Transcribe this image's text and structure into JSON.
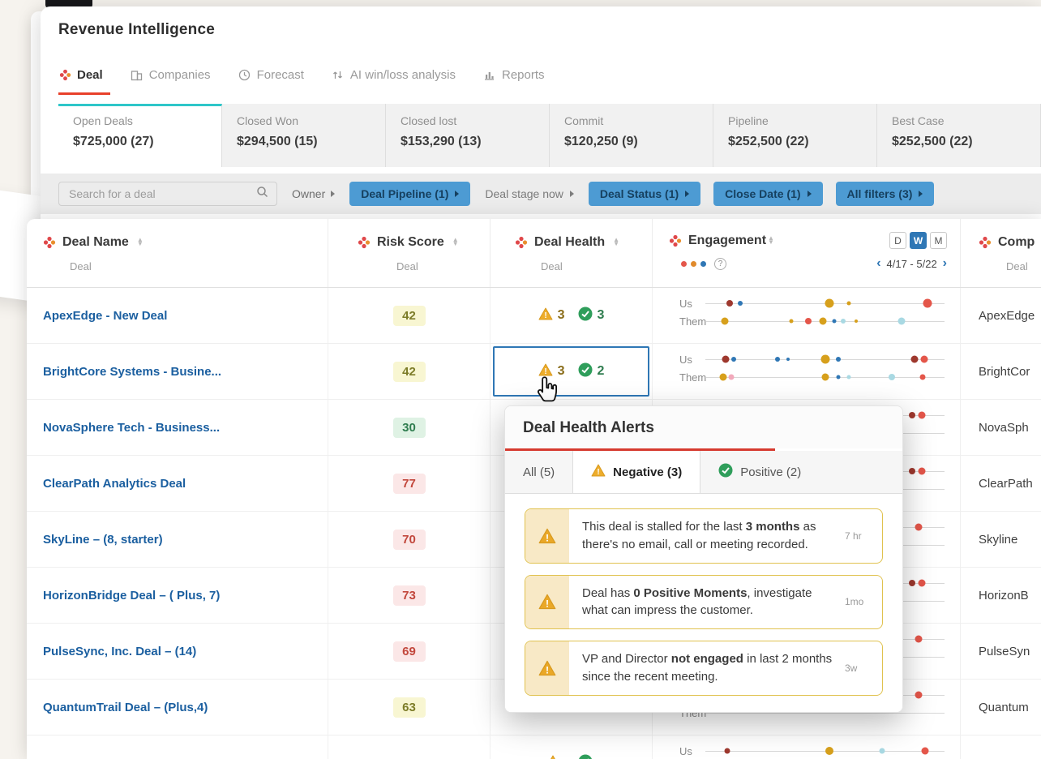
{
  "page": {
    "title": "Revenue Intelligence"
  },
  "icons": {
    "sort_up": "▲",
    "sort_down": "▼",
    "chevron_left": "‹",
    "chevron_right": "›",
    "question": "?"
  },
  "nav": {
    "tabs": [
      {
        "label": "Deal",
        "icon": "deal-icon",
        "active": true
      },
      {
        "label": "Companies",
        "icon": "companies-icon",
        "active": false
      },
      {
        "label": "Forecast",
        "icon": "forecast-icon",
        "active": false
      },
      {
        "label": "AI win/loss analysis",
        "icon": "winloss-icon",
        "active": false
      },
      {
        "label": "Reports",
        "icon": "reports-icon",
        "active": false
      }
    ]
  },
  "summary_cards": [
    {
      "label": "Open Deals",
      "value": "$725,000 (27)",
      "active": true
    },
    {
      "label": "Closed Won",
      "value": "$294,500 (15)",
      "active": false
    },
    {
      "label": "Closed lost",
      "value": "$153,290 (13)",
      "active": false
    },
    {
      "label": "Commit",
      "value": "$120,250 (9)",
      "active": false
    },
    {
      "label": "Pipeline",
      "value": "$252,500 (22)",
      "active": false
    },
    {
      "label": "Best Case",
      "value": "$252,500 (22)",
      "active": false
    }
  ],
  "filter_bar": {
    "search_placeholder": "Search for a deal",
    "owner_label": "Owner",
    "pills": [
      {
        "label": "Deal Pipeline (1)",
        "variant": "blue"
      },
      {
        "label": "Deal stage now",
        "variant": "plain"
      },
      {
        "label": "Deal Status (1)",
        "variant": "blue"
      },
      {
        "label": "Close Date (1)",
        "variant": "blue"
      },
      {
        "label": "All filters (3)",
        "variant": "blue"
      }
    ]
  },
  "table": {
    "columns": {
      "name": {
        "title": "Deal Name",
        "sub": "Deal"
      },
      "risk": {
        "title": "Risk Score",
        "sub": "Deal"
      },
      "health": {
        "title": "Deal Health",
        "sub": "Deal"
      },
      "engagement": {
        "title": "Engagement",
        "segments": [
          "D",
          "W",
          "M"
        ],
        "active_segment": "W",
        "date_range": "4/17 - 5/22",
        "row_labels": [
          "Us",
          "Them"
        ]
      },
      "company": {
        "title": "Comp",
        "sub": "Deal"
      }
    },
    "rows": [
      {
        "name": "ApexEdge - New Deal",
        "risk": "42",
        "tone": "yellow",
        "health": true,
        "neg": "3",
        "pos": "3",
        "selected": false,
        "company": "ApexEdge",
        "us": [
          {
            "p": 0.1,
            "c": "maroon",
            "s": 8
          },
          {
            "p": 0.145,
            "c": "blue",
            "s": 6
          },
          {
            "p": 0.52,
            "c": "gold",
            "s": 11
          },
          {
            "p": 0.6,
            "c": "gold",
            "s": 5
          },
          {
            "p": 0.93,
            "c": "red",
            "s": 11
          }
        ],
        "them": [
          {
            "p": 0.08,
            "c": "gold",
            "s": 9
          },
          {
            "p": 0.36,
            "c": "gold",
            "s": 5
          },
          {
            "p": 0.43,
            "c": "red",
            "s": 8
          },
          {
            "p": 0.49,
            "c": "gold",
            "s": 9
          },
          {
            "p": 0.54,
            "c": "blue",
            "s": 5
          },
          {
            "p": 0.575,
            "c": "teal",
            "s": 6
          },
          {
            "p": 0.63,
            "c": "gold",
            "s": 4
          },
          {
            "p": 0.82,
            "c": "teal",
            "s": 9
          }
        ]
      },
      {
        "name": "BrightCore Systems - Busine...",
        "risk": "42",
        "tone": "yellow",
        "health": true,
        "neg": "3",
        "pos": "2",
        "selected": true,
        "company": "BrightCor",
        "us": [
          {
            "p": 0.085,
            "c": "maroon",
            "s": 9
          },
          {
            "p": 0.12,
            "c": "blue",
            "s": 6
          },
          {
            "p": 0.3,
            "c": "blue",
            "s": 6
          },
          {
            "p": 0.345,
            "c": "blue",
            "s": 4
          },
          {
            "p": 0.5,
            "c": "gold",
            "s": 11
          },
          {
            "p": 0.555,
            "c": "blue",
            "s": 6
          },
          {
            "p": 0.875,
            "c": "maroon",
            "s": 9
          },
          {
            "p": 0.915,
            "c": "red",
            "s": 9
          }
        ],
        "them": [
          {
            "p": 0.075,
            "c": "gold",
            "s": 9
          },
          {
            "p": 0.11,
            "c": "pink",
            "s": 7
          },
          {
            "p": 0.5,
            "c": "gold",
            "s": 9
          },
          {
            "p": 0.555,
            "c": "blue",
            "s": 5
          },
          {
            "p": 0.6,
            "c": "teal",
            "s": 5
          },
          {
            "p": 0.78,
            "c": "teal",
            "s": 8
          },
          {
            "p": 0.91,
            "c": "red",
            "s": 7
          }
        ]
      },
      {
        "name": "NovaSphere Tech - Business...",
        "risk": "30",
        "tone": "green",
        "health": false,
        "neg": "",
        "pos": "",
        "selected": false,
        "company": "NovaSph",
        "us": [
          {
            "p": 0.865,
            "c": "maroon",
            "s": 8
          },
          {
            "p": 0.905,
            "c": "red",
            "s": 9
          }
        ],
        "them": []
      },
      {
        "name": "ClearPath Analytics Deal",
        "risk": "77",
        "tone": "red",
        "health": false,
        "neg": "",
        "pos": "",
        "selected": false,
        "company": "ClearPath",
        "us": [
          {
            "p": 0.865,
            "c": "maroon",
            "s": 8
          },
          {
            "p": 0.905,
            "c": "red",
            "s": 9
          }
        ],
        "them": []
      },
      {
        "name": "SkyLine – (8, starter)",
        "risk": "70",
        "tone": "red",
        "health": false,
        "neg": "",
        "pos": "",
        "selected": false,
        "company": "Skyline",
        "us": [
          {
            "p": 0.89,
            "c": "red",
            "s": 9
          }
        ],
        "them": []
      },
      {
        "name": "HorizonBridge Deal – ( Plus, 7)",
        "risk": "73",
        "tone": "red",
        "health": false,
        "neg": "",
        "pos": "",
        "selected": false,
        "company": "HorizonB",
        "us": [
          {
            "p": 0.865,
            "c": "maroon",
            "s": 8
          },
          {
            "p": 0.905,
            "c": "red",
            "s": 9
          }
        ],
        "them": []
      },
      {
        "name": "PulseSync, Inc. Deal – (14)",
        "risk": "69",
        "tone": "red",
        "health": false,
        "neg": "",
        "pos": "",
        "selected": false,
        "company": "PulseSyn",
        "us": [
          {
            "p": 0.89,
            "c": "red",
            "s": 9
          }
        ],
        "them": []
      },
      {
        "name": "QuantumTrail Deal – (Plus,4)",
        "risk": "63",
        "tone": "yellow",
        "health": false,
        "neg": "",
        "pos": "",
        "selected": false,
        "company": "Quantum",
        "us": [
          {
            "p": 0.89,
            "c": "red",
            "s": 9
          }
        ],
        "them": []
      },
      {
        "name": "",
        "risk": "",
        "tone": "",
        "health": true,
        "neg": "",
        "pos": "",
        "selected": false,
        "company": "",
        "us": [
          {
            "p": 0.09,
            "c": "maroon",
            "s": 7
          },
          {
            "p": 0.52,
            "c": "gold",
            "s": 10
          },
          {
            "p": 0.74,
            "c": "teal",
            "s": 7
          },
          {
            "p": 0.92,
            "c": "red",
            "s": 9
          }
        ],
        "them": []
      }
    ]
  },
  "popup": {
    "title": "Deal Health Alerts",
    "tabs": [
      {
        "label": "All (5)",
        "icon": "",
        "active": false
      },
      {
        "label": "Negative (3)",
        "icon": "warning",
        "active": true
      },
      {
        "label": "Positive (2)",
        "icon": "check",
        "active": false
      }
    ],
    "alerts": [
      {
        "pre": "This deal is stalled for the last ",
        "bold": "3 months",
        "post": " as there's no email, call or meeting recorded.",
        "time": "7 hr"
      },
      {
        "pre": "Deal has ",
        "bold": "0 Positive Moments",
        "post": ", investigate what can impress the customer.",
        "time": "1mo"
      },
      {
        "pre": "VP and Director ",
        "bold": "not engaged",
        "post": " in last 2 months since the recent meeting.",
        "time": "3w"
      }
    ]
  },
  "palette": {
    "red": "#e4564a",
    "maroon": "#9e382e",
    "gold": "#d7a01c",
    "blue": "#2f77b5",
    "teal": "#a9d9e3",
    "pink": "#f2a9bb",
    "orange": "#e08a2c",
    "accent_teal": "#2ec6c9",
    "accent_red": "#e8402a",
    "pill_blue": "#4d9bd3",
    "selection_blue": "#2f77b5",
    "popup_red": "#d63a2f"
  }
}
